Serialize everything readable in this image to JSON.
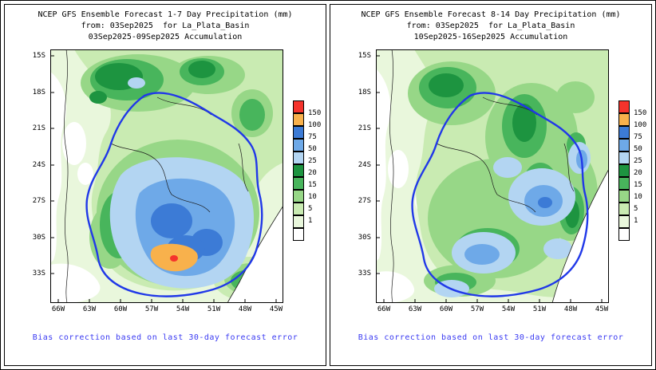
{
  "palette": {
    "r150": "#f5332c",
    "o100": "#f8b14c",
    "b75": "#3c7bd6",
    "b50": "#6ea9e8",
    "b25": "#b3d5f2",
    "g20": "#1d9440",
    "g15": "#48b55c",
    "g10": "#97d787",
    "g5": "#c9ebb2",
    "g1": "#e9f7dc",
    "w0": "#ffffff",
    "basin_outline": "#2038e8",
    "country_border": "#1a1a1a",
    "footer_text": "#3a3af2",
    "text": "#000000"
  },
  "legend": {
    "values": [
      "150",
      "100",
      "75",
      "50",
      "25",
      "20",
      "15",
      "10",
      "5",
      "1"
    ],
    "box_colors": [
      "r150",
      "o100",
      "b75",
      "b50",
      "b25",
      "g20",
      "g15",
      "g10",
      "g5",
      "g1",
      "w0"
    ]
  },
  "axes": {
    "lat": [
      "15S",
      "18S",
      "21S",
      "24S",
      "27S",
      "30S",
      "33S"
    ],
    "lon": [
      "66W",
      "63W",
      "60W",
      "57W",
      "54W",
      "51W",
      "48W",
      "45W"
    ]
  },
  "panels": [
    {
      "title1": "NCEP GFS Ensemble Forecast 1-7 Day Precipitation (mm)",
      "title2": "from: 03Sep2025  for La_Plata_Basin",
      "title3": "03Sep2025-09Sep2025 Accumulation",
      "footer": "Bias correction based on last 30-day forecast error"
    },
    {
      "title1": "NCEP GFS Ensemble Forecast 8-14 Day Precipitation (mm)",
      "title2": "from: 03Sep2025  for La_Plata_Basin",
      "title3": "10Sep2025-16Sep2025 Accumulation",
      "footer": "Bias correction based on last 30-day forecast error"
    }
  ]
}
